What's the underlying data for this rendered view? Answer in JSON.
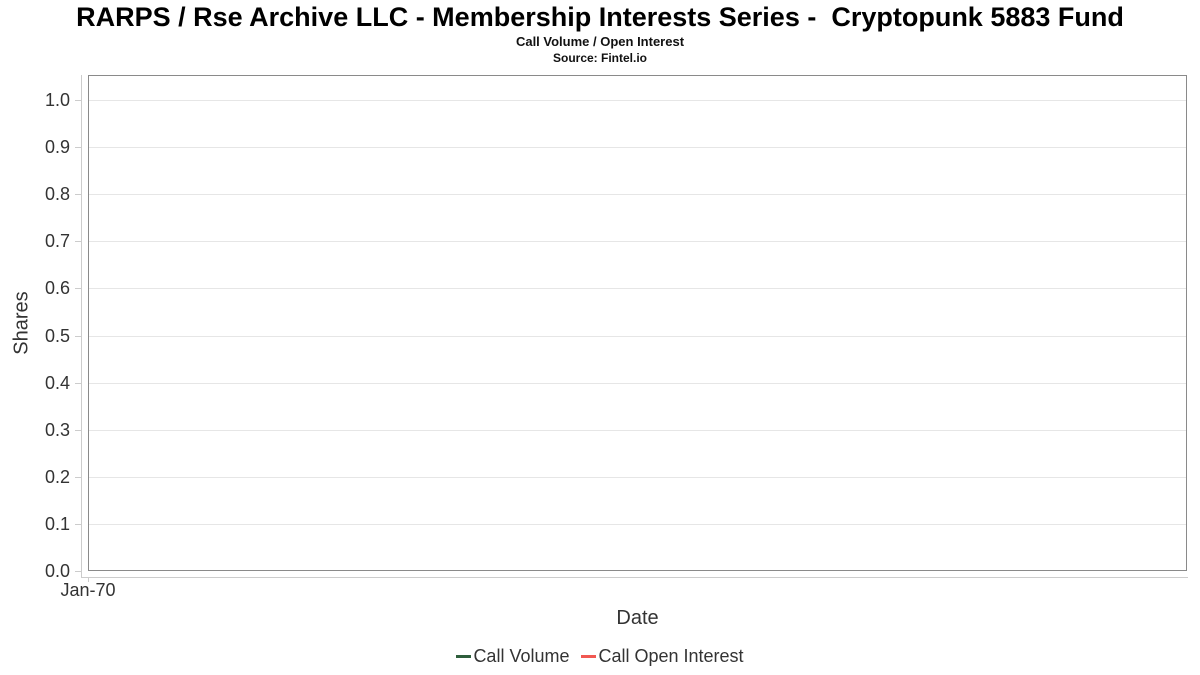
{
  "header": {
    "title": "RARPS / Rse Archive LLC - Membership Interests Series -  Cryptopunk 5883 Fund",
    "subtitle": "Call Volume / Open Interest",
    "source": "Source: Fintel.io"
  },
  "chart_data": {
    "type": "line",
    "title": "RARPS / Rse Archive LLC - Membership Interests Series -  Cryptopunk 5883 Fund",
    "subtitle": "Call Volume / Open Interest",
    "source": "Source: Fintel.io",
    "xlabel": "Date",
    "ylabel": "Shares",
    "x": [],
    "xticks": [
      "Jan-70"
    ],
    "yticks": [
      0.0,
      0.1,
      0.2,
      0.3,
      0.4,
      0.5,
      0.6,
      0.7,
      0.8,
      0.9,
      1.0
    ],
    "ytick_format_decimals": 1,
    "ylim": [
      0.0,
      1.05
    ],
    "grid": "horizontal",
    "legend_position": "bottom",
    "series": [
      {
        "name": "Call Volume",
        "color": "#2e5e3c",
        "values": []
      },
      {
        "name": "Call Open Interest",
        "color": "#f15852",
        "values": []
      }
    ]
  },
  "colors": {
    "background": "#ffffff",
    "plot_border": "#8a8a8a",
    "gridline": "#e6e6e6",
    "axis_line": "#cccccc",
    "tick_text": "#333333",
    "title_text": "#000000",
    "call_volume": "#2e5e3c",
    "call_open_interest": "#f15852"
  }
}
